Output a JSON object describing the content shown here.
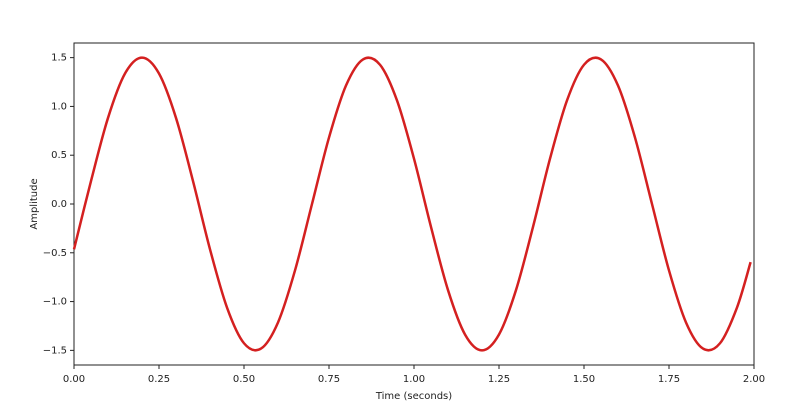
{
  "chart_data": {
    "type": "line",
    "xlabel": "Time (seconds)",
    "ylabel": "Amplitude",
    "x": [
      0,
      0.05,
      0.1,
      0.15,
      0.2,
      0.25,
      0.3,
      0.35,
      0.4,
      0.45,
      0.5,
      0.55,
      0.6,
      0.65,
      0.7,
      0.75,
      0.8,
      0.85,
      0.9,
      0.95,
      1.0,
      1.05,
      1.1,
      1.15,
      1.2,
      1.25,
      1.3,
      1.35,
      1.4,
      1.45,
      1.5,
      1.55,
      1.6,
      1.65,
      1.7,
      1.75,
      1.8,
      1.85,
      1.9,
      1.95,
      1.99
    ],
    "series": [
      {
        "color": "#d42020",
        "values": [
          -0.464,
          0.235,
          0.882,
          1.337,
          1.5,
          1.337,
          0.882,
          0.235,
          -0.464,
          -1.061,
          -1.427,
          -1.482,
          -1.214,
          -0.681,
          0,
          0.681,
          1.214,
          1.482,
          1.427,
          1.061,
          0.464,
          -0.235,
          -0.882,
          -1.337,
          -1.5,
          -1.337,
          -0.882,
          -0.235,
          0.464,
          1.061,
          1.427,
          1.482,
          1.214,
          0.681,
          0,
          -0.681,
          -1.214,
          -1.482,
          -1.427,
          -1.061,
          -0.596
        ]
      }
    ],
    "xlim": [
      0,
      2
    ],
    "xticks": [
      {
        "value": 0,
        "label": "0.00"
      },
      {
        "value": 0.25,
        "label": "0.25"
      },
      {
        "value": 0.5,
        "label": "0.50"
      },
      {
        "value": 0.75,
        "label": "0.75"
      },
      {
        "value": 1,
        "label": "1.00"
      },
      {
        "value": 1.25,
        "label": "1.25"
      },
      {
        "value": 1.5,
        "label": "1.50"
      },
      {
        "value": 1.75,
        "label": "1.75"
      },
      {
        "value": 2,
        "label": "2.00"
      }
    ],
    "ylim": [
      -1.65,
      1.65
    ],
    "yticks": [
      {
        "value": -1.5,
        "label": "−1.5"
      },
      {
        "value": -1,
        "label": "−1.0"
      },
      {
        "value": -0.5,
        "label": "−0.5"
      },
      {
        "value": 0,
        "label": "0.0"
      },
      {
        "value": 0.5,
        "label": "0.5"
      },
      {
        "value": 1,
        "label": "1.0"
      },
      {
        "value": 1.5,
        "label": "1.5"
      }
    ],
    "grid": false
  }
}
